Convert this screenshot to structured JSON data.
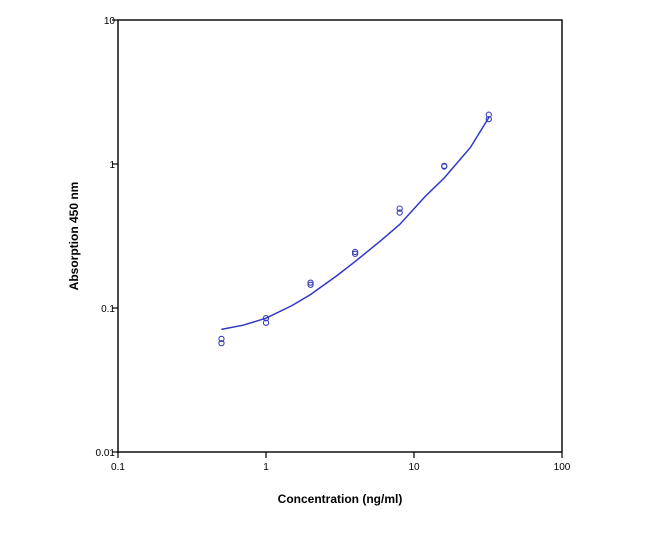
{
  "chart_data": {
    "type": "scatter",
    "title": "",
    "xlabel": "Concentration (ng/ml)",
    "ylabel": "Absorption 450 nm",
    "x_scale": "log",
    "y_scale": "log",
    "xlim": [
      0.1,
      100
    ],
    "ylim": [
      0.01,
      10
    ],
    "x_ticks": [
      {
        "value": 0.1,
        "label": "0.1"
      },
      {
        "value": 1,
        "label": "1"
      },
      {
        "value": 10,
        "label": "10"
      },
      {
        "value": 100,
        "label": "100"
      }
    ],
    "y_ticks": [
      {
        "value": 0.01,
        "label": "0.01"
      },
      {
        "value": 0.1,
        "label": "0.1"
      },
      {
        "value": 1,
        "label": "1"
      },
      {
        "value": 10,
        "label": "10"
      }
    ],
    "grid": false,
    "legend": "none",
    "series": [
      {
        "kind": "points",
        "marker": "open-circle",
        "color": "#3a3fb8",
        "points": [
          {
            "x": 0.5,
            "y": 0.061
          },
          {
            "x": 0.5,
            "y": 0.057
          },
          {
            "x": 1,
            "y": 0.085
          },
          {
            "x": 1,
            "y": 0.079
          },
          {
            "x": 2,
            "y": 0.15
          },
          {
            "x": 2,
            "y": 0.145
          },
          {
            "x": 4,
            "y": 0.245
          },
          {
            "x": 4,
            "y": 0.238
          },
          {
            "x": 8,
            "y": 0.49
          },
          {
            "x": 8,
            "y": 0.46
          },
          {
            "x": 16,
            "y": 0.97
          },
          {
            "x": 16,
            "y": 0.96
          },
          {
            "x": 32,
            "y": 2.2
          },
          {
            "x": 32,
            "y": 2.05
          }
        ]
      },
      {
        "kind": "fit-curve",
        "color": "#2f37c8",
        "points": [
          {
            "x": 0.5,
            "y": 0.071
          },
          {
            "x": 0.7,
            "y": 0.076
          },
          {
            "x": 1,
            "y": 0.085
          },
          {
            "x": 1.5,
            "y": 0.104
          },
          {
            "x": 2,
            "y": 0.124
          },
          {
            "x": 3,
            "y": 0.167
          },
          {
            "x": 4,
            "y": 0.21
          },
          {
            "x": 6,
            "y": 0.295
          },
          {
            "x": 8,
            "y": 0.38
          },
          {
            "x": 12,
            "y": 0.6
          },
          {
            "x": 16,
            "y": 0.8
          },
          {
            "x": 24,
            "y": 1.3
          },
          {
            "x": 32,
            "y": 2.1
          }
        ]
      }
    ]
  }
}
